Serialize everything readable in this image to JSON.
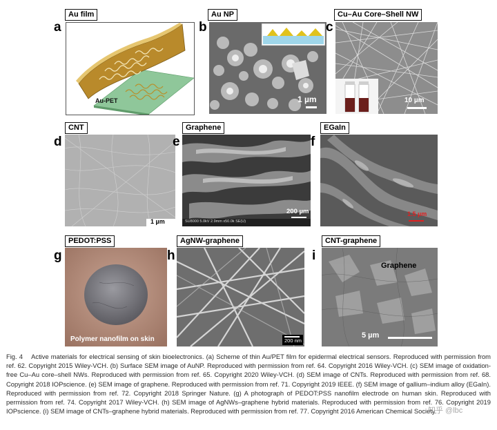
{
  "panels": {
    "a": {
      "letter": "a",
      "tag": "Au film",
      "inner_label": "Au-PET"
    },
    "b": {
      "letter": "b",
      "tag": "Au NP",
      "scale": "1 µm"
    },
    "c": {
      "letter": "c",
      "tag": "Cu–Au Core–Shell NW",
      "scale": "10 µm"
    },
    "d": {
      "letter": "d",
      "tag": "CNT",
      "scale": "1 µm"
    },
    "e": {
      "letter": "e",
      "tag": "Graphene",
      "scale": "200 µm",
      "footer": "SU8000 5.0kV 2.9mm x50.0k SE(U)"
    },
    "f": {
      "letter": "f",
      "tag": "EGaIn",
      "scale": "1.5 µm"
    },
    "g": {
      "letter": "g",
      "tag": "PEDOT:PSS",
      "inner_label": "Polymer nanofilm on skin"
    },
    "h": {
      "letter": "h",
      "tag": "AgNW-graphene",
      "scale": "200 nm"
    },
    "i": {
      "letter": "i",
      "tag": "CNT-graphene",
      "scale": "5 µm",
      "inner_label": "Graphene"
    }
  },
  "caption": {
    "figure_label": "Fig. 4",
    "text": "Active materials for electrical sensing of skin bioelectronics. (a) Scheme of thin Au/PET film for epidermal electrical sensors. Reproduced with permission from ref. 62. Copyright 2015 Wiley-VCH. (b) Surface SEM image of AuNP. Reproduced with permission from ref. 64. Copyright 2016 Wiley-VCH. (c) SEM image of oxidation-free Cu–Au core–shell NWs. Reproduced with permission from ref. 65. Copyright 2020 Wiley-VCH. (d) SEM image of CNTs. Reproduced with permission from ref. 68. Copyright 2018 IOPscience. (e) SEM image of graphene. Reproduced with permission from ref. 71. Copyright 2019 IEEE. (f) SEM image of gallium–indium alloy (EGaIn). Reproduced with permission from ref. 72. Copyright 2018 Springer Nature. (g) A photograph of PEDOT:PSS nanofilm electrode on human skin. Reproduced with permission from ref. 74. Copyright 2017 Wiley-VCH. (h) SEM image of AgNWs–graphene hybrid materials. Reproduced with permission from ref. 76. Copyright 2019 IOPscience. (i) SEM image of CNTs–graphene hybrid materials. Reproduced with permission from ref. 77. Copyright 2016 American Chemical Society."
  },
  "watermark": "知乎 @lbc"
}
